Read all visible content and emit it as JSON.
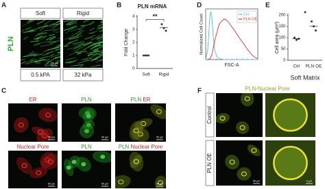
{
  "panel_labels": [
    "A",
    "B",
    "C",
    "D",
    "E",
    "F"
  ],
  "panel_a": {
    "row_label": "PLN",
    "columns": [
      "Soft",
      "Rigid"
    ],
    "stiffness": [
      "0.5 kPA",
      "32 kPa"
    ],
    "scale_bar": "100 µm"
  },
  "panel_c": {
    "rows": [
      {
        "stain": "ER",
        "pln": "PLN",
        "merge": [
          "PLN",
          "ER"
        ]
      },
      {
        "stain": "Nuclear Pore",
        "pln": "PLN",
        "merge": [
          "PLN",
          "Nuclear Pore"
        ]
      }
    ],
    "scale_bar": "50 µm"
  },
  "panel_f": {
    "title": "PLN-Nuclear Pore",
    "rows": [
      "Control",
      "PLN OE"
    ],
    "scale_bars": [
      "50 µm",
      "5 µm"
    ]
  },
  "chart_data": [
    {
      "type": "scatter",
      "title": "PLN mRNA",
      "y_label": "Fold Change",
      "categories": [
        "Soft",
        "Rigid"
      ],
      "points": [
        [
          1,
          1,
          1
        ],
        [
          3.4,
          3.1,
          2.9
        ]
      ],
      "means": [
        1,
        3.15
      ],
      "color": "#333333",
      "ylim": [
        0,
        4
      ],
      "yticks": [
        0,
        1,
        2,
        3,
        4
      ],
      "annotation": "**"
    },
    {
      "type": "line",
      "y_label": "Normalized Cell Count",
      "x_label": "FSC-A",
      "x": [
        0,
        4,
        8,
        10,
        12,
        15,
        18,
        22,
        26,
        30,
        35,
        40,
        45,
        50,
        55,
        60,
        65,
        70,
        75,
        80,
        85,
        90,
        95,
        100
      ],
      "series": [
        {
          "name": "Ctrl",
          "color": "#4fb8e8",
          "values": [
            0,
            20,
            85,
            95,
            80,
            40,
            15,
            5,
            2,
            1,
            0,
            0,
            0,
            0,
            0,
            0,
            0,
            0,
            0,
            0,
            0,
            0,
            0,
            0
          ]
        },
        {
          "name": "PLN OE",
          "color": "#e03030",
          "values": [
            0,
            0,
            2,
            5,
            10,
            25,
            40,
            55,
            70,
            75,
            80,
            78,
            72,
            65,
            58,
            50,
            42,
            35,
            28,
            20,
            14,
            8,
            4,
            2
          ]
        }
      ],
      "xlim": [
        0,
        100
      ],
      "ylim": [
        0,
        100
      ],
      "legend": "upper right"
    },
    {
      "type": "scatter",
      "y_label": "Cell area (µm²)",
      "x_label": "Soft Matrix",
      "categories": [
        "Ctrl",
        "PLN OE"
      ],
      "points": [
        [
          100,
          90,
          95
        ],
        [
          172,
          150,
          132
        ]
      ],
      "means": [
        95,
        151
      ],
      "color": "#333333",
      "ylim": [
        0,
        200
      ],
      "yticks": [
        0,
        50,
        100,
        150,
        200
      ],
      "annotation": "*"
    }
  ]
}
